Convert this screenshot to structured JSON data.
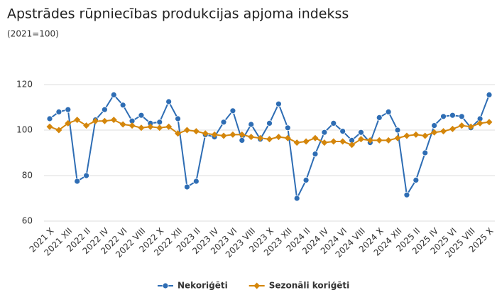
{
  "chart_data": {
    "type": "line",
    "title": "Apstrādes rūpniecības produkcijas apjoma indekss",
    "subtitle": "(2021=100)",
    "categories": [
      "2021 X",
      null,
      "2021 XII",
      null,
      "2022 II",
      null,
      "2022 IV",
      null,
      "2022 VI",
      null,
      "2022 VIII",
      null,
      "2022 X",
      null,
      "2022 XII",
      null,
      "2023 II",
      null,
      "2023 IV",
      null,
      "2023 VI",
      null,
      "2023 VIII",
      null,
      "2023 X",
      null,
      "2023 XII",
      null,
      "2024 II",
      null,
      "2024 IV",
      null,
      "2024 VI",
      null,
      "2024 VIII",
      null,
      "2024 X",
      null,
      "2024 XII",
      null,
      "2025 II",
      null,
      "2025 IV",
      null,
      "2025 VI",
      null,
      "2025 VIII",
      null,
      "2025 X"
    ],
    "series": [
      {
        "name": "Nekoriģēti",
        "color": "#2e6db4",
        "marker": "circle",
        "values": [
          105,
          108,
          109,
          77.5,
          80,
          104.5,
          109,
          115.5,
          111,
          104,
          106.5,
          103,
          103.5,
          112.5,
          105,
          75,
          77.5,
          98,
          97,
          103.5,
          108.5,
          95.5,
          102.5,
          96,
          103,
          111.5,
          101,
          70,
          78,
          89.5,
          99,
          103,
          99.5,
          95.5,
          99,
          94.5,
          105.5,
          108,
          100,
          71.5,
          78,
          90,
          102,
          106,
          106.5,
          106,
          101,
          105,
          115.5
        ]
      },
      {
        "name": "Sezonāli koriģēti",
        "color": "#d4860b",
        "marker": "diamond",
        "values": [
          101.5,
          100,
          103,
          104.5,
          102,
          104,
          104,
          104.5,
          102.5,
          102,
          101,
          101.5,
          101,
          101.5,
          98.5,
          100,
          99.5,
          98.5,
          98,
          97.5,
          98,
          98,
          97,
          96.5,
          96,
          97,
          96.5,
          94.5,
          95,
          96.5,
          94.5,
          95,
          95,
          93.5,
          96,
          95.5,
          95.5,
          95.5,
          96.5,
          97.5,
          98,
          97.5,
          99,
          99.5,
          100.5,
          102,
          101.5,
          103,
          103.5
        ]
      }
    ],
    "ylim": [
      60,
      120
    ],
    "yticks": [
      60,
      80,
      100,
      120
    ],
    "grid": true,
    "legend": "bottom"
  }
}
